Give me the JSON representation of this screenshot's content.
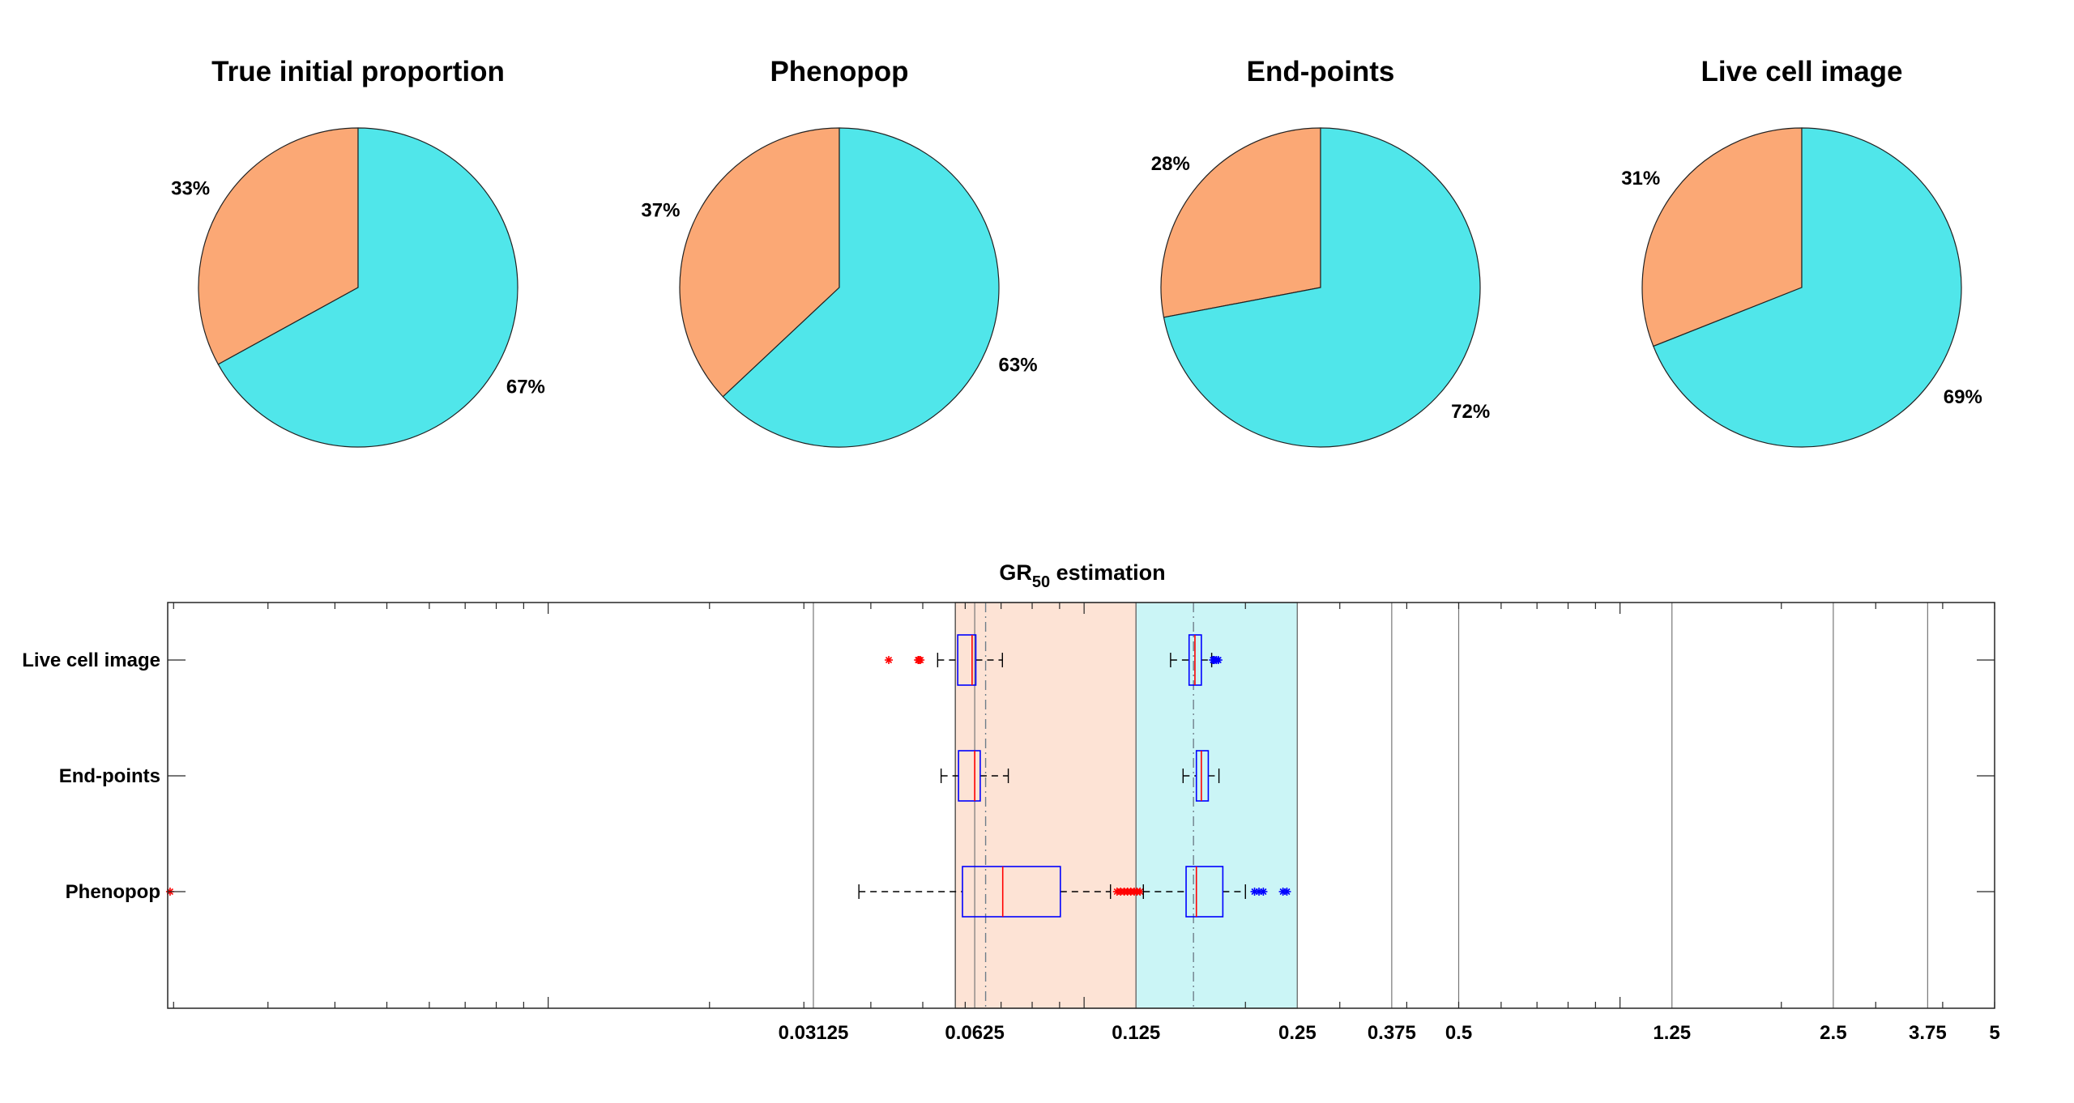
{
  "colors": {
    "sensitive": "#fba875",
    "resistant": "#50e6ea",
    "sensitive_band": "#fde3d5",
    "resistant_band": "#cbf5f6",
    "box_edge": "#0000ff",
    "median": "#ff0000",
    "outlier_sensitive": "#ff0000",
    "outlier_resistant": "#0000ff",
    "whisker": "#000000"
  },
  "chart_data": [
    {
      "type": "pie",
      "title": "True initial proportion",
      "slices": [
        {
          "label": "33%",
          "value": 33,
          "color": "#fba875"
        },
        {
          "label": "67%",
          "value": 67,
          "color": "#50e6ea"
        }
      ]
    },
    {
      "type": "pie",
      "title": "Phenopop",
      "slices": [
        {
          "label": "37%",
          "value": 37,
          "color": "#fba875"
        },
        {
          "label": "63%",
          "value": 63,
          "color": "#50e6ea"
        }
      ]
    },
    {
      "type": "pie",
      "title": "End-points",
      "slices": [
        {
          "label": "28%",
          "value": 28,
          "color": "#fba875"
        },
        {
          "label": "72%",
          "value": 72,
          "color": "#50e6ea"
        }
      ]
    },
    {
      "type": "pie",
      "title": "Live cell image",
      "slices": [
        {
          "label": "31%",
          "value": 31,
          "color": "#fba875"
        },
        {
          "label": "69%",
          "value": 69,
          "color": "#50e6ea"
        }
      ]
    },
    {
      "type": "box",
      "title": "GR",
      "title_subscript": "50",
      "title_suffix": " estimation",
      "x_scale": "log",
      "xlim": [
        0.00195,
        5
      ],
      "x_ticks": [
        {
          "value": 0.03125,
          "label": "0.03125"
        },
        {
          "value": 0.0625,
          "label": "0.0625"
        },
        {
          "value": 0.125,
          "label": "0.125"
        },
        {
          "value": 0.25,
          "label": "0.25"
        },
        {
          "value": 0.375,
          "label": "0.375"
        },
        {
          "value": 0.5,
          "label": "0.5"
        },
        {
          "value": 1.25,
          "label": "1.25"
        },
        {
          "value": 2.5,
          "label": "2.5"
        },
        {
          "value": 3.75,
          "label": "3.75"
        },
        {
          "value": 5,
          "label": "5"
        }
      ],
      "bands": [
        {
          "from": 0.0575,
          "to": 0.125,
          "color": "#fde3d5"
        },
        {
          "from": 0.125,
          "to": 0.25,
          "color": "#cbf5f6"
        }
      ],
      "reference_lines": [
        0.0655,
        0.16
      ],
      "rows": [
        {
          "label": "Live cell image",
          "groups": [
            {
              "q1": 0.0581,
              "median": 0.0618,
              "q3": 0.0628,
              "whisker_low": 0.0533,
              "whisker_high": 0.0704,
              "outliers": [
                0.0432,
                0.049,
                0.0492,
                0.0495
              ]
            },
            {
              "q1": 0.157,
              "median": 0.161,
              "q3": 0.1655,
              "whisker_low": 0.145,
              "whisker_high": 0.173,
              "outliers": [
                0.174,
                0.175,
                0.1765,
                0.178
              ]
            }
          ]
        },
        {
          "label": "End-points",
          "groups": [
            {
              "q1": 0.0583,
              "median": 0.0625,
              "q3": 0.064,
              "whisker_low": 0.0541,
              "whisker_high": 0.0722,
              "outliers": []
            },
            {
              "q1": 0.162,
              "median": 0.1655,
              "q3": 0.1705,
              "whisker_low": 0.153,
              "whisker_high": 0.1785,
              "outliers": []
            }
          ]
        },
        {
          "label": "Phenopop",
          "groups": [
            {
              "q1": 0.0593,
              "median": 0.0705,
              "q3": 0.0903,
              "whisker_low": 0.038,
              "whisker_high": 0.112,
              "outliers": [
                0.00197,
                0.1152,
                0.117,
                0.1188,
                0.1205,
                0.1222,
                0.124,
                0.1255,
                0.1272
              ]
            },
            {
              "q1": 0.155,
              "median": 0.162,
              "q3": 0.1815,
              "whisker_low": 0.129,
              "whisker_high": 0.2,
              "outliers": [
                0.208,
                0.212,
                0.216,
                0.235,
                0.239
              ]
            }
          ]
        }
      ]
    }
  ]
}
